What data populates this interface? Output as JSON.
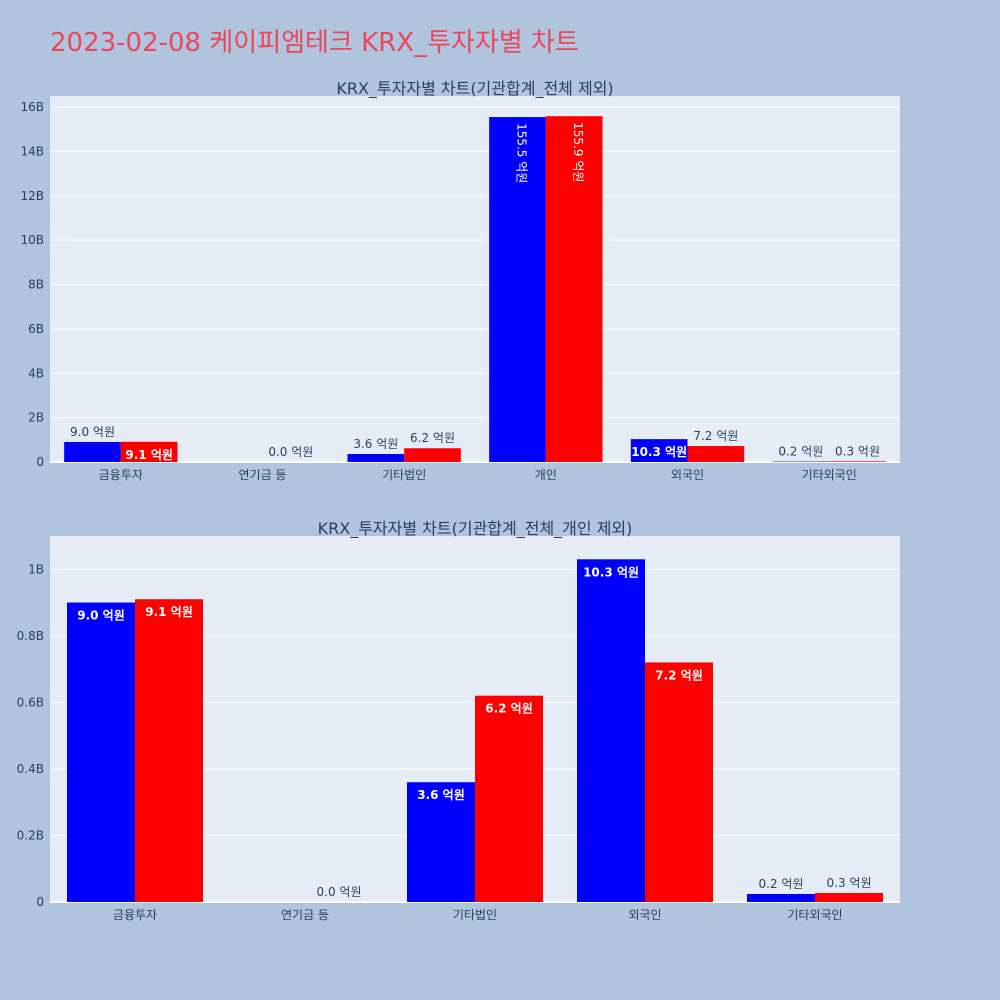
{
  "page_title": "2023-02-08 케이피엠테크 KRX_투자자별 차트",
  "colors": {
    "buy": "#0000ff",
    "sell": "#ff0000",
    "plot_bg": "#e5ecf6",
    "page_bg": "#b0c4de",
    "title": "#e8485a",
    "axis_text": "#2a3f5f"
  },
  "chart_data": [
    {
      "type": "bar",
      "title": "KRX_투자자별 차트(기관합계_전체 제외)",
      "categories": [
        "금융투자",
        "연기금 등",
        "기타법인",
        "개인",
        "외국인",
        "기타외국인"
      ],
      "series": [
        {
          "color": "#0000ff",
          "values": [
            0.9,
            0.0,
            0.36,
            15.55,
            1.03,
            0.02
          ],
          "labels": [
            "9.0 억원",
            "",
            "3.6 억원",
            "155.5 억원",
            "10.3 억원",
            "0.2 억원"
          ]
        },
        {
          "color": "#ff0000",
          "values": [
            0.91,
            0.0,
            0.62,
            15.59,
            0.72,
            0.03
          ],
          "labels": [
            "9.1 억원",
            "0.0 억원",
            "6.2 억원",
            "155.9 억원",
            "7.2 억원",
            "0.3 억원"
          ]
        }
      ],
      "ylim": [
        0,
        16.5
      ],
      "yticks": [
        0,
        2,
        4,
        6,
        8,
        10,
        12,
        14,
        16
      ],
      "ytick_labels": [
        "0",
        "2B",
        "4B",
        "6B",
        "8B",
        "10B",
        "12B",
        "14B",
        "16B"
      ],
      "grid": true
    },
    {
      "type": "bar",
      "title": "KRX_투자자별 차트(기관합계_전체_개인 제외)",
      "categories": [
        "금융투자",
        "연기금 등",
        "기타법인",
        "외국인",
        "기타외국인"
      ],
      "series": [
        {
          "color": "#0000ff",
          "values": [
            0.9,
            0.0,
            0.36,
            1.03,
            0.024
          ],
          "labels": [
            "9.0 억원",
            "",
            "3.6 억원",
            "10.3 억원",
            "0.2 억원"
          ]
        },
        {
          "color": "#ff0000",
          "values": [
            0.91,
            0.0,
            0.62,
            0.72,
            0.027
          ],
          "labels": [
            "9.1 억원",
            "0.0 억원",
            "6.2 억원",
            "7.2 억원",
            "0.3 억원"
          ]
        }
      ],
      "ylim": [
        0,
        1.1
      ],
      "yticks": [
        0,
        0.2,
        0.4,
        0.6,
        0.8,
        1.0
      ],
      "ytick_labels": [
        "0",
        "0.2B",
        "0.4B",
        "0.6B",
        "0.8B",
        "1B"
      ],
      "grid": true
    }
  ]
}
